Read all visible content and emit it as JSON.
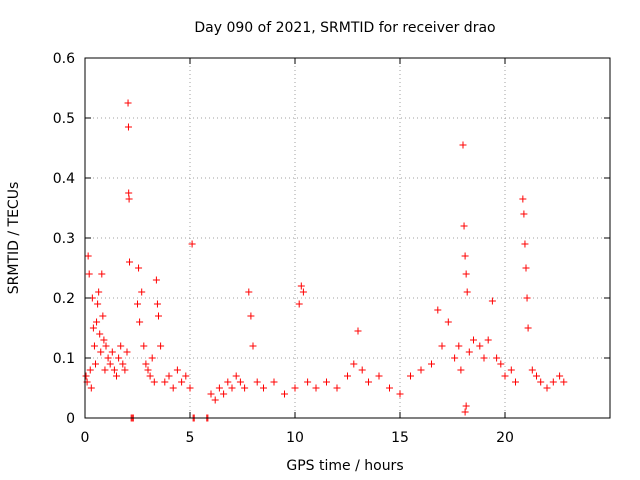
{
  "chart_data": {
    "type": "scatter",
    "title": "Day 090 of 2021, SRMTID for receiver drao",
    "xlabel": "GPS time / hours",
    "ylabel": "SRMTID / TECUs",
    "xlim": [
      0,
      25
    ],
    "ylim": [
      0,
      0.6
    ],
    "xticks": [
      0,
      5,
      10,
      15,
      20
    ],
    "xtick_labels": [
      "0",
      "5",
      "10",
      "15",
      "20"
    ],
    "yticks": [
      0,
      0.1,
      0.2,
      0.3,
      0.4,
      0.5,
      0.6
    ],
    "ytick_labels": [
      "0",
      "0.1",
      "0.2",
      "0.3",
      "0.4",
      "0.5",
      "0.6"
    ],
    "grid": true,
    "marker": "+",
    "color": "#ff0000",
    "series": [
      {
        "name": "SRMTID",
        "points": [
          [
            0.05,
            0.07
          ],
          [
            0.1,
            0.06
          ],
          [
            0.15,
            0.27
          ],
          [
            0.2,
            0.24
          ],
          [
            0.25,
            0.08
          ],
          [
            0.3,
            0.05
          ],
          [
            0.35,
            0.2
          ],
          [
            0.4,
            0.15
          ],
          [
            0.45,
            0.12
          ],
          [
            0.5,
            0.09
          ],
          [
            0.55,
            0.16
          ],
          [
            0.6,
            0.19
          ],
          [
            0.65,
            0.21
          ],
          [
            0.7,
            0.14
          ],
          [
            0.75,
            0.11
          ],
          [
            0.8,
            0.24
          ],
          [
            0.85,
            0.17
          ],
          [
            0.9,
            0.13
          ],
          [
            0.95,
            0.08
          ],
          [
            1.0,
            0.12
          ],
          [
            1.1,
            0.1
          ],
          [
            1.2,
            0.09
          ],
          [
            1.3,
            0.11
          ],
          [
            1.4,
            0.08
          ],
          [
            1.5,
            0.07
          ],
          [
            1.6,
            0.1
          ],
          [
            1.7,
            0.12
          ],
          [
            1.8,
            0.09
          ],
          [
            1.9,
            0.08
          ],
          [
            2.0,
            0.11
          ],
          [
            2.05,
            0.525
          ],
          [
            2.07,
            0.485
          ],
          [
            2.08,
            0.375
          ],
          [
            2.1,
            0.365
          ],
          [
            2.12,
            0.26
          ],
          [
            2.2,
            0.0
          ],
          [
            2.25,
            0.0
          ],
          [
            2.3,
            0.0
          ],
          [
            2.5,
            0.19
          ],
          [
            2.55,
            0.25
          ],
          [
            2.6,
            0.16
          ],
          [
            2.7,
            0.21
          ],
          [
            2.8,
            0.12
          ],
          [
            2.9,
            0.09
          ],
          [
            3.0,
            0.08
          ],
          [
            3.1,
            0.07
          ],
          [
            3.2,
            0.1
          ],
          [
            3.3,
            0.06
          ],
          [
            3.4,
            0.23
          ],
          [
            3.45,
            0.19
          ],
          [
            3.5,
            0.17
          ],
          [
            3.6,
            0.12
          ],
          [
            3.8,
            0.06
          ],
          [
            4.0,
            0.07
          ],
          [
            4.2,
            0.05
          ],
          [
            4.4,
            0.08
          ],
          [
            4.6,
            0.06
          ],
          [
            4.8,
            0.07
          ],
          [
            5.0,
            0.05
          ],
          [
            5.1,
            0.29
          ],
          [
            5.15,
            0.0
          ],
          [
            5.2,
            0.0
          ],
          [
            5.8,
            0.0
          ],
          [
            5.85,
            0.0
          ],
          [
            6.0,
            0.04
          ],
          [
            6.2,
            0.03
          ],
          [
            6.4,
            0.05
          ],
          [
            6.6,
            0.04
          ],
          [
            6.8,
            0.06
          ],
          [
            7.0,
            0.05
          ],
          [
            7.2,
            0.07
          ],
          [
            7.4,
            0.06
          ],
          [
            7.6,
            0.05
          ],
          [
            7.8,
            0.21
          ],
          [
            7.9,
            0.17
          ],
          [
            8.0,
            0.12
          ],
          [
            8.2,
            0.06
          ],
          [
            8.5,
            0.05
          ],
          [
            9.0,
            0.06
          ],
          [
            9.5,
            0.04
          ],
          [
            10.0,
            0.05
          ],
          [
            10.2,
            0.19
          ],
          [
            10.3,
            0.22
          ],
          [
            10.4,
            0.21
          ],
          [
            10.6,
            0.06
          ],
          [
            11.0,
            0.05
          ],
          [
            11.5,
            0.06
          ],
          [
            12.0,
            0.05
          ],
          [
            12.5,
            0.07
          ],
          [
            12.8,
            0.09
          ],
          [
            13.0,
            0.145
          ],
          [
            13.2,
            0.08
          ],
          [
            13.5,
            0.06
          ],
          [
            14.0,
            0.07
          ],
          [
            14.5,
            0.05
          ],
          [
            15.0,
            0.04
          ],
          [
            15.5,
            0.07
          ],
          [
            16.0,
            0.08
          ],
          [
            16.5,
            0.09
          ],
          [
            16.8,
            0.18
          ],
          [
            17.0,
            0.12
          ],
          [
            17.3,
            0.16
          ],
          [
            17.6,
            0.1
          ],
          [
            17.8,
            0.12
          ],
          [
            17.9,
            0.08
          ],
          [
            18.0,
            0.455
          ],
          [
            18.05,
            0.32
          ],
          [
            18.1,
            0.27
          ],
          [
            18.15,
            0.24
          ],
          [
            18.2,
            0.21
          ],
          [
            18.1,
            0.01
          ],
          [
            18.15,
            0.02
          ],
          [
            18.3,
            0.11
          ],
          [
            18.5,
            0.13
          ],
          [
            18.8,
            0.12
          ],
          [
            19.0,
            0.1
          ],
          [
            19.2,
            0.13
          ],
          [
            19.4,
            0.195
          ],
          [
            19.6,
            0.1
          ],
          [
            19.8,
            0.09
          ],
          [
            20.0,
            0.07
          ],
          [
            20.3,
            0.08
          ],
          [
            20.5,
            0.06
          ],
          [
            20.85,
            0.365
          ],
          [
            20.9,
            0.34
          ],
          [
            20.95,
            0.29
          ],
          [
            21.0,
            0.25
          ],
          [
            21.05,
            0.2
          ],
          [
            21.1,
            0.15
          ],
          [
            21.3,
            0.08
          ],
          [
            21.5,
            0.07
          ],
          [
            21.7,
            0.06
          ],
          [
            22.0,
            0.05
          ],
          [
            22.3,
            0.06
          ],
          [
            22.6,
            0.07
          ],
          [
            22.8,
            0.06
          ]
        ]
      }
    ]
  }
}
